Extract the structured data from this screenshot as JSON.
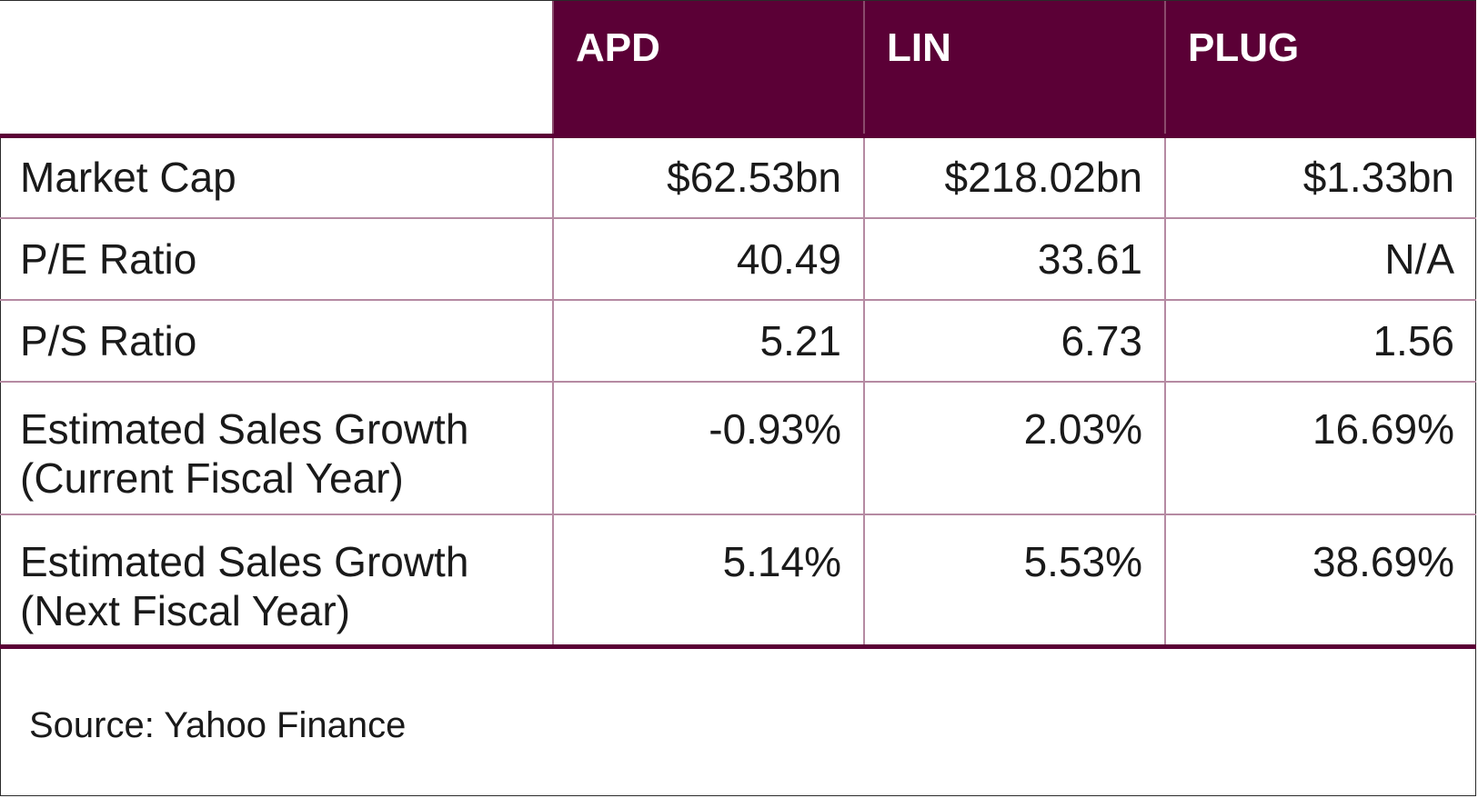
{
  "table": {
    "columns": [
      "APD",
      "LIN",
      "PLUG"
    ],
    "rows": [
      {
        "label": "Market Cap",
        "values": [
          "$62.53bn",
          "$218.02bn",
          "$1.33bn"
        ]
      },
      {
        "label": "P/E Ratio",
        "values": [
          "40.49",
          "33.61",
          "N/A"
        ]
      },
      {
        "label": "P/S Ratio",
        "values": [
          "5.21",
          "6.73",
          "1.56"
        ]
      },
      {
        "label_line1": "Estimated Sales Growth",
        "label_line2": "(Current Fiscal Year)",
        "values": [
          "-0.93%",
          "2.03%",
          "16.69%"
        ]
      },
      {
        "label_line1": "Estimated Sales Growth",
        "label_line2": "(Next Fiscal Year)",
        "values": [
          "5.14%",
          "5.53%",
          "38.69%"
        ]
      }
    ]
  },
  "source": "Source: Yahoo Finance",
  "colors": {
    "header_bg": "#5b0036",
    "header_text": "#ffffff",
    "grid": "#b58aa2"
  }
}
